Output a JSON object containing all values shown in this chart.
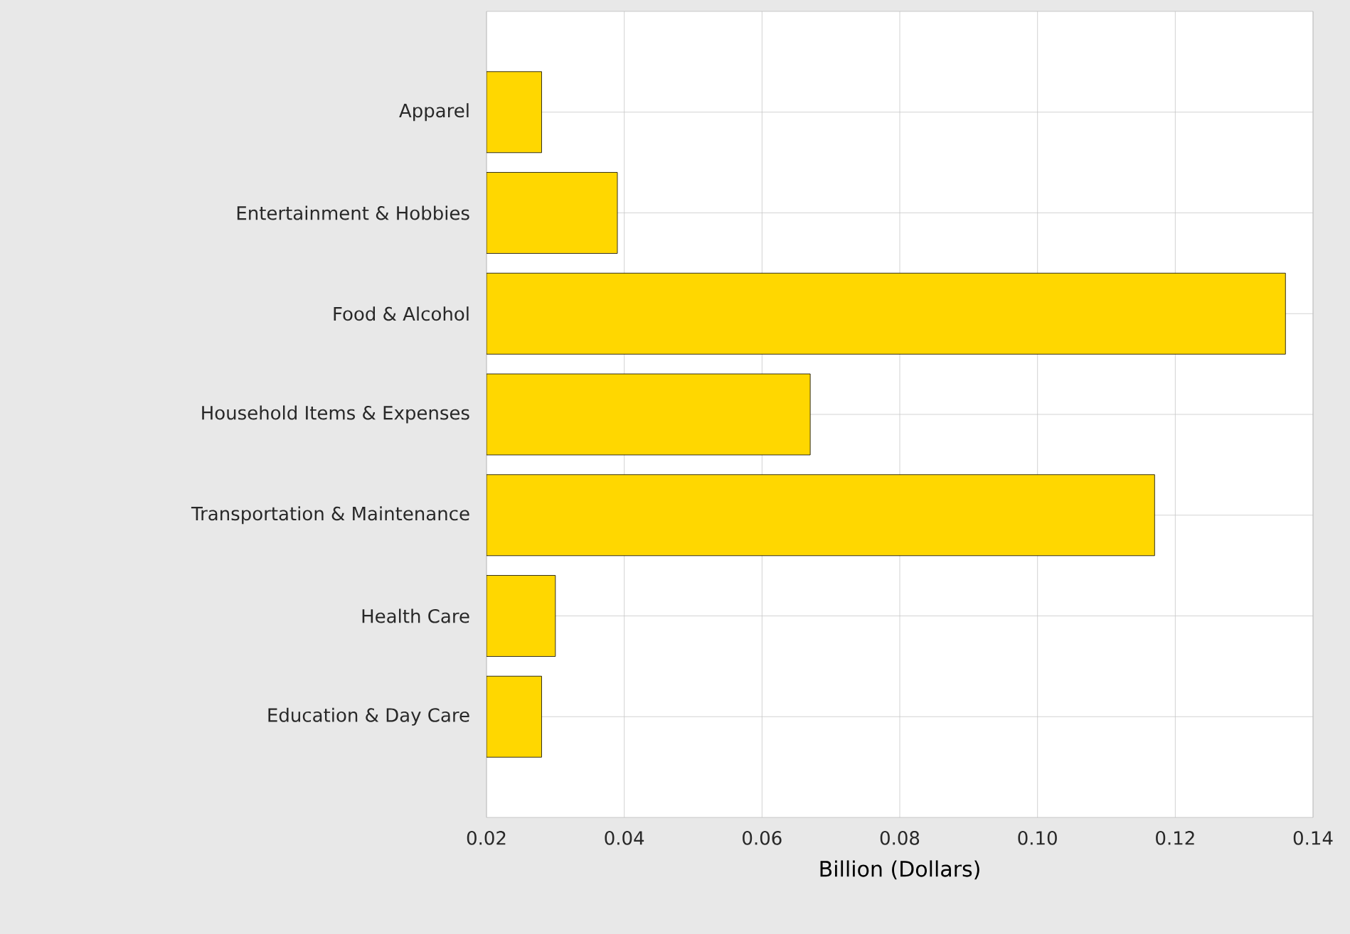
{
  "chart_data": {
    "type": "bar",
    "orientation": "horizontal",
    "categories": [
      "Apparel",
      "Entertainment & Hobbies",
      "Food & Alcohol",
      "Household Items & Expenses",
      "Transportation & Maintenance",
      "Health Care",
      "Education & Day Care"
    ],
    "values": [
      0.028,
      0.039,
      0.136,
      0.067,
      0.117,
      0.03,
      0.028
    ],
    "color": "#ffd700",
    "xlim": [
      0.02,
      0.14
    ],
    "xticks": [
      0.02,
      0.04,
      0.06,
      0.08,
      {
        "value": 0.1,
        "label": "0.10"
      },
      0.12,
      0.14
    ],
    "xlabel": "Billion (Dollars)",
    "grid": true
  }
}
